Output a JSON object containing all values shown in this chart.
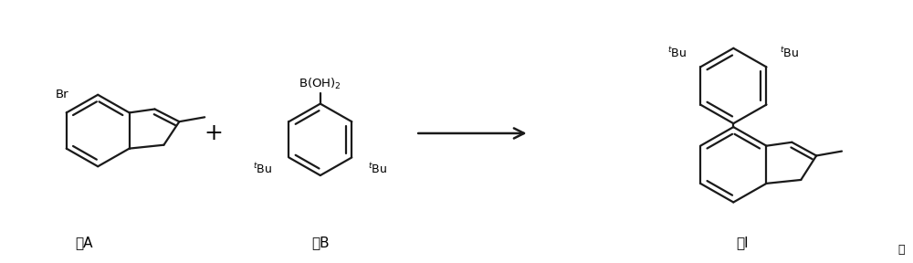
{
  "bg_color": "#ffffff",
  "line_color": "#1a1a1a",
  "line_width": 1.6,
  "text_color": "#000000",
  "fig_width": 10.0,
  "fig_height": 2.88,
  "dpi": 100,
  "label_A": "式A",
  "label_B": "式B",
  "label_I": "式I"
}
